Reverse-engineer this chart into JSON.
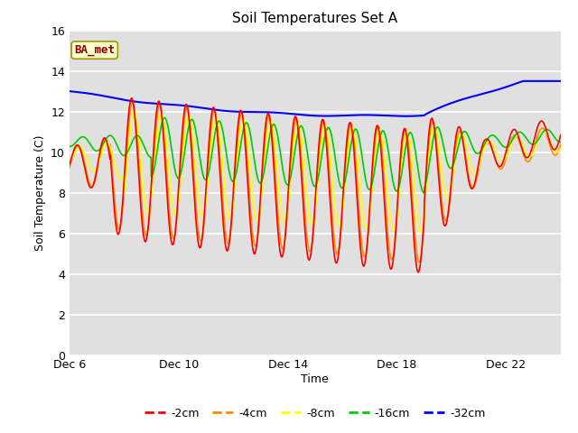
{
  "title": "Soil Temperatures Set A",
  "xlabel": "Time",
  "ylabel": "Soil Temperature (C)",
  "ylim": [
    0,
    16
  ],
  "yticks": [
    0,
    2,
    4,
    6,
    8,
    10,
    12,
    14,
    16
  ],
  "annotation_text": "BA_met",
  "annotation_color": "#8B0000",
  "annotation_bg": "#FFFFCC",
  "annotation_border": "#999900",
  "bg_color": "#E0E0E0",
  "line_colors": {
    "-2cm": "#FF0000",
    "-4cm": "#FF8C00",
    "-8cm": "#FFFF00",
    "-16cm": "#00CC00",
    "-32cm": "#0000FF"
  },
  "legend_labels": [
    "-2cm",
    "-4cm",
    "-8cm",
    "-16cm",
    "-32cm"
  ],
  "x_tick_labels": [
    "Dec 6",
    "Dec 10",
    "Dec 14",
    "Dec 18",
    "Dec 22"
  ],
  "x_tick_positions": [
    0,
    4,
    8,
    12,
    16
  ],
  "xlim": [
    0,
    18
  ]
}
